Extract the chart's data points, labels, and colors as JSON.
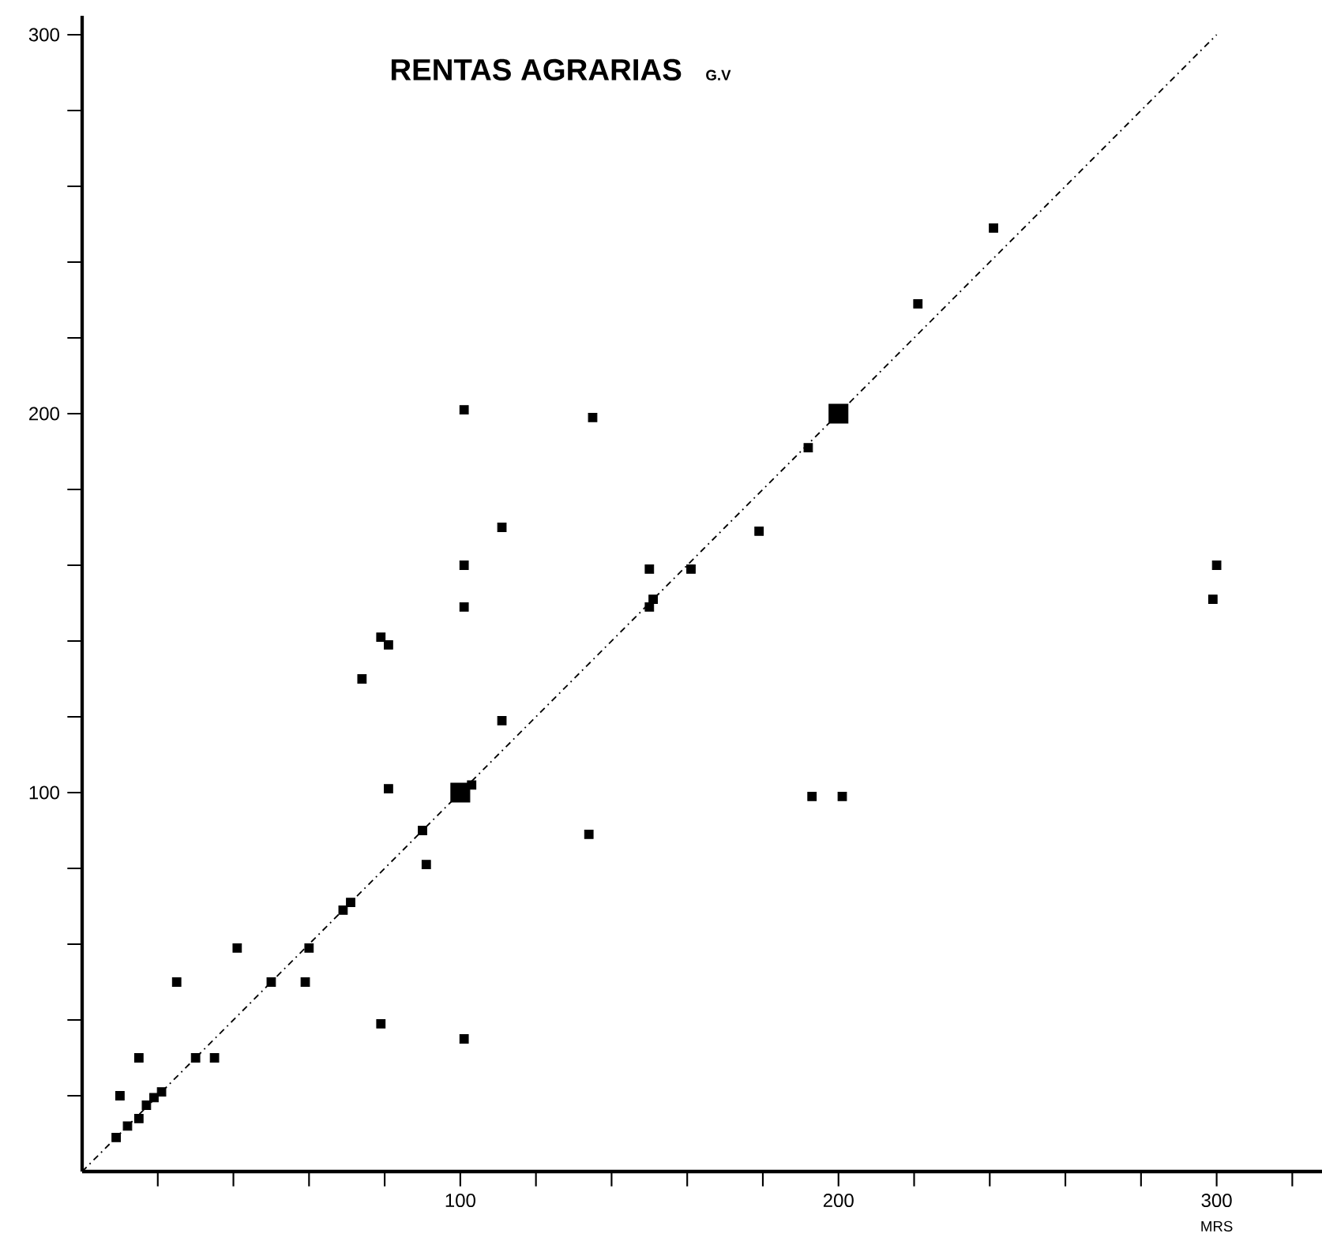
{
  "chart_data": {
    "type": "bubble",
    "title": "RENTAS AGRARIAS",
    "subtitle": "G.V",
    "xlabel": "MRS",
    "xlim": [
      0,
      328
    ],
    "ylim": [
      0,
      305
    ],
    "xticks": [
      {
        "value": 20,
        "label": null
      },
      {
        "value": 40,
        "label": null
      },
      {
        "value": 60,
        "label": null
      },
      {
        "value": 80,
        "label": null
      },
      100,
      {
        "value": 120,
        "label": null
      },
      {
        "value": 140,
        "label": null
      },
      {
        "value": 160,
        "label": null
      },
      {
        "value": 180,
        "label": null
      },
      200,
      {
        "value": 220,
        "label": null
      },
      {
        "value": 240,
        "label": null
      },
      {
        "value": 260,
        "label": null
      },
      {
        "value": 280,
        "label": null
      },
      300,
      {
        "value": 320,
        "label": null
      }
    ],
    "yticks": [
      {
        "value": 20,
        "label": null
      },
      {
        "value": 40,
        "label": null
      },
      {
        "value": 60,
        "label": null
      },
      {
        "value": 80,
        "label": null
      },
      100,
      {
        "value": 120,
        "label": null
      },
      {
        "value": 140,
        "label": null
      },
      {
        "value": 160,
        "label": null
      },
      {
        "value": 180,
        "label": null
      },
      200,
      {
        "value": 220,
        "label": null
      },
      {
        "value": 240,
        "label": null
      },
      {
        "value": 260,
        "label": null
      },
      {
        "value": 280,
        "label": null
      },
      300
    ],
    "marker": "square",
    "series": [
      {
        "color": "#000000",
        "x": [
          9,
          12,
          15,
          17,
          19,
          21,
          10,
          15,
          30,
          35,
          25,
          41,
          50,
          59,
          60,
          69,
          71,
          79,
          90,
          91,
          100,
          103,
          101,
          134,
          111,
          81,
          74,
          79,
          81,
          101,
          101,
          101,
          111,
          135,
          150,
          150,
          151,
          161,
          179,
          192,
          200,
          221,
          241,
          193,
          201,
          300,
          299
        ],
        "values": [
          9,
          12,
          14,
          17.5,
          19.5,
          21,
          20,
          30,
          30,
          30,
          50,
          59,
          50,
          50,
          59,
          69,
          71,
          39,
          90,
          81,
          100,
          102,
          35,
          89,
          119,
          101,
          130,
          141,
          139,
          149,
          160,
          201,
          170,
          199,
          149,
          159,
          151,
          159,
          169,
          191,
          200,
          229,
          249,
          99,
          99,
          160,
          151
        ],
        "sizes": [
          0.2,
          0.2,
          0.2,
          0.2,
          0.2,
          0.2,
          0.2,
          0.2,
          0.2,
          0.2,
          0.2,
          0.2,
          0.2,
          0.2,
          0.2,
          0.2,
          0.2,
          0.2,
          0.2,
          0.2,
          1,
          0.2,
          0.2,
          0.2,
          0.2,
          0.2,
          0.2,
          0.2,
          0.2,
          0.2,
          0.2,
          0.2,
          0.2,
          0.2,
          0.2,
          0.2,
          0.2,
          0.2,
          0.2,
          0.2,
          1,
          0.2,
          0.2,
          0.2,
          0.2,
          0.2,
          0.2
        ]
      },
      {
        "type": "line",
        "color": "#000000",
        "line_style": "dashed",
        "marker": "none",
        "x": [
          0,
          300
        ],
        "values": [
          0,
          300
        ]
      }
    ]
  }
}
